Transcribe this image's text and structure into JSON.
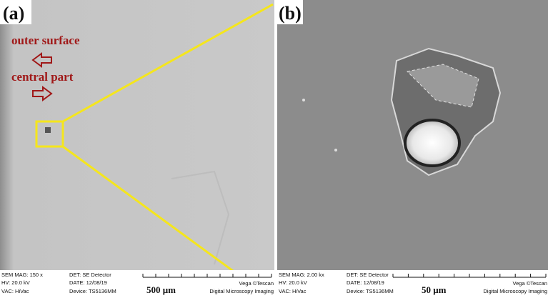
{
  "panels": [
    {
      "label": "(a)",
      "annotations": [
        "outer surface",
        "central part"
      ],
      "info": {
        "mag": "SEM MAG: 150 x",
        "det": "DET: SE Detector",
        "hv": "HV: 20.0 kV",
        "date": "DATE: 12/08/19",
        "vac": "VAC: HiVac",
        "device": "Device: TS5136MM",
        "scale": "500 μm",
        "vendor": "Vega ©Tescan",
        "software": "Digital Microscopy Imaging"
      }
    },
    {
      "label": "(b)",
      "info": {
        "mag": "SEM MAG: 2.00 kx",
        "det": "DET: SE Detector",
        "hv": "HV: 20.0 kV",
        "date": "DATE: 12/08/19",
        "vac": "VAC: HiVac",
        "device": "Device: TS5136MM",
        "scale": "50 μm",
        "vendor": "Vega ©Tescan",
        "software": "Digital Microscopy Imaging"
      }
    }
  ]
}
